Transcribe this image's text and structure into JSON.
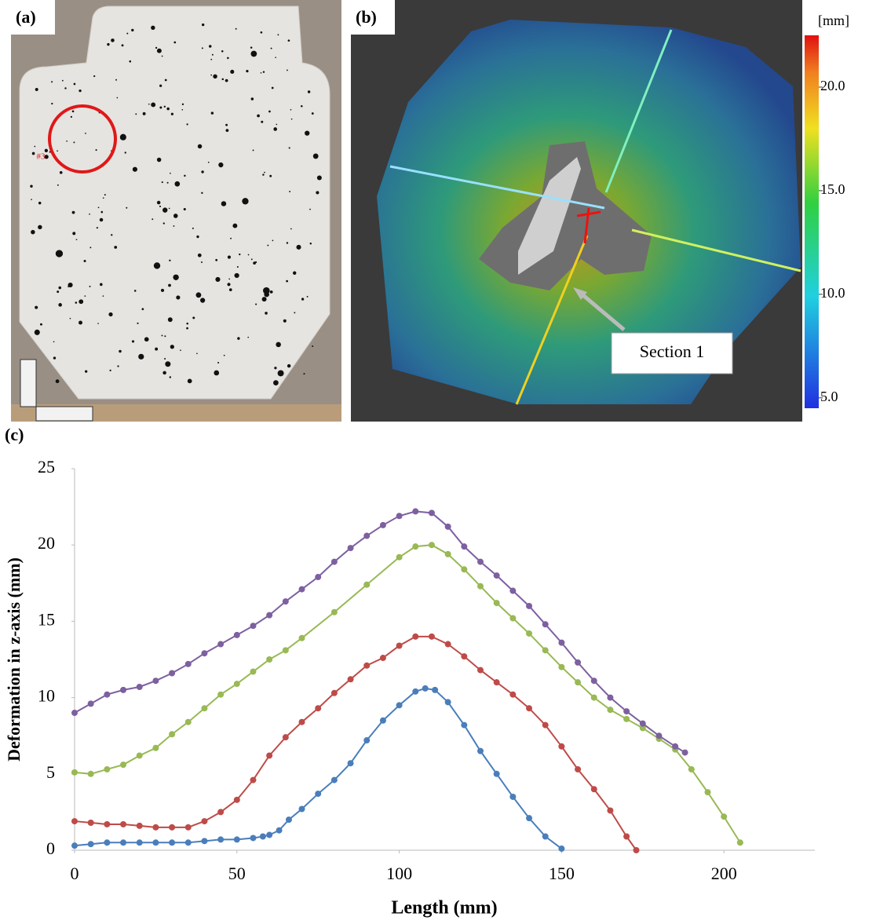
{
  "panel_a": {
    "label": "(a)",
    "marker": "#3"
  },
  "panel_b": {
    "label": "(b)",
    "annotation": "Section 1",
    "colorbar": {
      "unit": "[mm]",
      "lim": [
        4.5,
        22.5
      ],
      "ticks": [
        {
          "value": 20,
          "label": "20.0"
        },
        {
          "value": 15,
          "label": "15.0"
        },
        {
          "value": 10,
          "label": "10.0"
        },
        {
          "value": 5,
          "label": "5.0"
        }
      ]
    }
  },
  "chart_data": {
    "type": "line",
    "panel_label": "(c)",
    "x_label": "Length (mm)",
    "y_label": "Deformation in z-axis (mm)",
    "xlim": [
      0,
      228
    ],
    "ylim": [
      0,
      25
    ],
    "xticks": [
      0,
      50,
      100,
      150,
      200
    ],
    "yticks": [
      0,
      5,
      10,
      15,
      20,
      25
    ],
    "series": [
      {
        "color": "#4a7ebb",
        "x": [
          0,
          5,
          10,
          15,
          20,
          25,
          30,
          35,
          40,
          45,
          50,
          55,
          58,
          60,
          63,
          66,
          70,
          75,
          80,
          85,
          90,
          95,
          100,
          105,
          108,
          111,
          115,
          120,
          125,
          130,
          135,
          140,
          145,
          150
        ],
        "values": [
          0.3,
          0.4,
          0.5,
          0.5,
          0.5,
          0.5,
          0.5,
          0.5,
          0.6,
          0.7,
          0.7,
          0.8,
          0.9,
          1.0,
          1.3,
          2.0,
          2.7,
          3.7,
          4.6,
          5.7,
          7.2,
          8.5,
          9.5,
          10.4,
          10.6,
          10.5,
          9.7,
          8.2,
          6.5,
          5.0,
          3.5,
          2.1,
          0.9,
          0.1
        ]
      },
      {
        "color": "#be4b48",
        "x": [
          0,
          5,
          10,
          15,
          20,
          25,
          30,
          35,
          40,
          45,
          50,
          55,
          60,
          65,
          70,
          75,
          80,
          85,
          90,
          95,
          100,
          105,
          110,
          115,
          120,
          125,
          130,
          135,
          140,
          145,
          150,
          155,
          160,
          165,
          170,
          173
        ],
        "values": [
          1.9,
          1.8,
          1.7,
          1.7,
          1.6,
          1.5,
          1.5,
          1.5,
          1.9,
          2.5,
          3.3,
          4.6,
          6.2,
          7.4,
          8.4,
          9.3,
          10.3,
          11.2,
          12.1,
          12.6,
          13.4,
          14.0,
          14.0,
          13.5,
          12.7,
          11.8,
          11.0,
          10.2,
          9.3,
          8.2,
          6.8,
          5.3,
          4.0,
          2.6,
          0.9,
          0
        ]
      },
      {
        "color": "#98b954",
        "x": [
          0,
          5,
          10,
          15,
          20,
          25,
          30,
          35,
          40,
          45,
          50,
          55,
          60,
          65,
          70,
          80,
          90,
          100,
          105,
          110,
          115,
          120,
          125,
          130,
          135,
          140,
          145,
          150,
          155,
          160,
          165,
          170,
          175,
          180,
          185,
          190,
          195,
          200,
          205
        ],
        "values": [
          5.1,
          5.0,
          5.3,
          5.6,
          6.2,
          6.7,
          7.6,
          8.4,
          9.3,
          10.2,
          10.9,
          11.7,
          12.5,
          13.1,
          13.9,
          15.6,
          17.4,
          19.2,
          19.9,
          20.0,
          19.4,
          18.4,
          17.3,
          16.2,
          15.2,
          14.2,
          13.1,
          12.0,
          11.0,
          10.0,
          9.2,
          8.6,
          8.0,
          7.3,
          6.6,
          5.3,
          3.8,
          2.2,
          0.5
        ]
      },
      {
        "color": "#7d60a0",
        "x": [
          0,
          5,
          10,
          15,
          20,
          25,
          30,
          35,
          40,
          45,
          50,
          55,
          60,
          65,
          70,
          75,
          80,
          85,
          90,
          95,
          100,
          105,
          110,
          115,
          120,
          125,
          130,
          135,
          140,
          145,
          150,
          155,
          160,
          165,
          170,
          175,
          180,
          185,
          188
        ],
        "values": [
          9.0,
          9.6,
          10.2,
          10.5,
          10.7,
          11.1,
          11.6,
          12.2,
          12.9,
          13.5,
          14.1,
          14.7,
          15.4,
          16.3,
          17.1,
          17.9,
          18.9,
          19.8,
          20.6,
          21.3,
          21.9,
          22.2,
          22.1,
          21.2,
          19.9,
          18.9,
          18.0,
          17.0,
          16.0,
          14.8,
          13.6,
          12.3,
          11.1,
          10.0,
          9.1,
          8.3,
          7.5,
          6.8,
          6.4
        ]
      }
    ]
  }
}
